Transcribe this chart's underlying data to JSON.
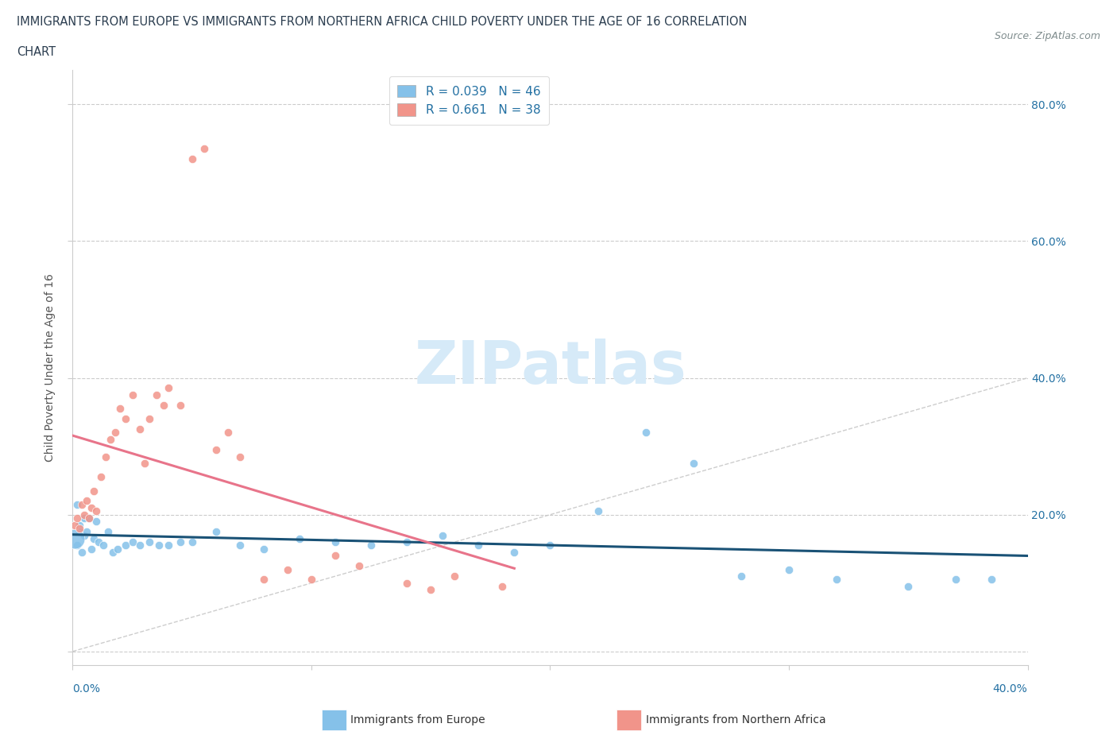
{
  "title_line1": "IMMIGRANTS FROM EUROPE VS IMMIGRANTS FROM NORTHERN AFRICA CHILD POVERTY UNDER THE AGE OF 16 CORRELATION",
  "title_line2": "CHART",
  "source": "Source: ZipAtlas.com",
  "ylabel": "Child Poverty Under the Age of 16",
  "r_europe": 0.039,
  "n_europe": 46,
  "r_africa": 0.661,
  "n_africa": 38,
  "color_europe": "#85C1E9",
  "color_africa": "#F1948A",
  "trendline_europe_color": "#1A5276",
  "trendline_africa_color": "#E8748A",
  "trendline_diag_color": "#C8C8C8",
  "watermark_color": "#D6EAF8",
  "legend_europe": "Immigrants from Europe",
  "legend_africa": "Immigrants from Northern Africa",
  "xlim": [
    0.0,
    0.4
  ],
  "ylim": [
    -0.02,
    0.85
  ],
  "europe_x": [
    0.001,
    0.002,
    0.002,
    0.003,
    0.003,
    0.004,
    0.005,
    0.005,
    0.006,
    0.007,
    0.008,
    0.009,
    0.01,
    0.011,
    0.013,
    0.015,
    0.017,
    0.019,
    0.022,
    0.025,
    0.028,
    0.032,
    0.036,
    0.04,
    0.045,
    0.05,
    0.06,
    0.07,
    0.08,
    0.095,
    0.11,
    0.125,
    0.14,
    0.155,
    0.17,
    0.185,
    0.2,
    0.22,
    0.24,
    0.26,
    0.28,
    0.3,
    0.32,
    0.35,
    0.37,
    0.385
  ],
  "europe_y": [
    0.165,
    0.155,
    0.215,
    0.185,
    0.175,
    0.145,
    0.195,
    0.17,
    0.175,
    0.195,
    0.15,
    0.165,
    0.19,
    0.16,
    0.155,
    0.175,
    0.145,
    0.15,
    0.155,
    0.16,
    0.155,
    0.16,
    0.155,
    0.155,
    0.16,
    0.16,
    0.175,
    0.155,
    0.15,
    0.165,
    0.16,
    0.155,
    0.16,
    0.17,
    0.155,
    0.145,
    0.155,
    0.205,
    0.32,
    0.275,
    0.11,
    0.12,
    0.105,
    0.095,
    0.105,
    0.105
  ],
  "europe_size_big": [
    0
  ],
  "europe_big_x": [
    0.001
  ],
  "europe_big_y": [
    0.165
  ],
  "africa_x": [
    0.001,
    0.002,
    0.003,
    0.004,
    0.005,
    0.006,
    0.007,
    0.008,
    0.009,
    0.01,
    0.012,
    0.014,
    0.016,
    0.018,
    0.02,
    0.022,
    0.025,
    0.028,
    0.03,
    0.032,
    0.035,
    0.038,
    0.04,
    0.045,
    0.05,
    0.055,
    0.06,
    0.065,
    0.07,
    0.08,
    0.09,
    0.1,
    0.11,
    0.12,
    0.14,
    0.15,
    0.16,
    0.18
  ],
  "africa_y": [
    0.185,
    0.195,
    0.18,
    0.215,
    0.2,
    0.22,
    0.195,
    0.21,
    0.235,
    0.205,
    0.255,
    0.285,
    0.31,
    0.32,
    0.355,
    0.34,
    0.375,
    0.325,
    0.275,
    0.34,
    0.375,
    0.36,
    0.385,
    0.36,
    0.72,
    0.735,
    0.295,
    0.32,
    0.285,
    0.105,
    0.12,
    0.105,
    0.14,
    0.125,
    0.1,
    0.09,
    0.11,
    0.095
  ],
  "point_size": 55,
  "big_point_size": 320
}
